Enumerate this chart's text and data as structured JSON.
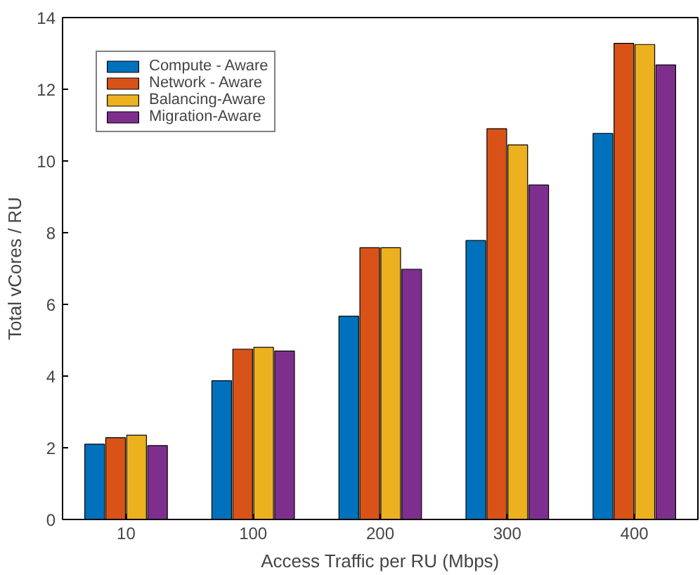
{
  "chart_data": {
    "type": "bar",
    "xlabel": "Access Traffic per RU (Mbps)",
    "ylabel": "Total vCores / RU",
    "categories": [
      "10",
      "100",
      "200",
      "300",
      "400"
    ],
    "series": [
      {
        "name": "Compute - Aware",
        "color": "#0072bd",
        "values": [
          2.1,
          3.87,
          5.67,
          7.78,
          10.77
        ]
      },
      {
        "name": "Network - Aware",
        "color": "#d95319",
        "values": [
          2.28,
          4.75,
          7.58,
          10.9,
          13.28
        ]
      },
      {
        "name": "Balancing-Aware",
        "color": "#edb120",
        "values": [
          2.35,
          4.8,
          7.58,
          10.45,
          13.25
        ]
      },
      {
        "name": "Migration-Aware",
        "color": "#7e2f8e",
        "values": [
          2.06,
          4.7,
          6.98,
          9.33,
          12.68
        ]
      }
    ],
    "ylim": [
      0,
      14
    ],
    "yticks": [
      0,
      2,
      4,
      6,
      8,
      10,
      12,
      14
    ],
    "grid": false,
    "legend": "top left"
  }
}
